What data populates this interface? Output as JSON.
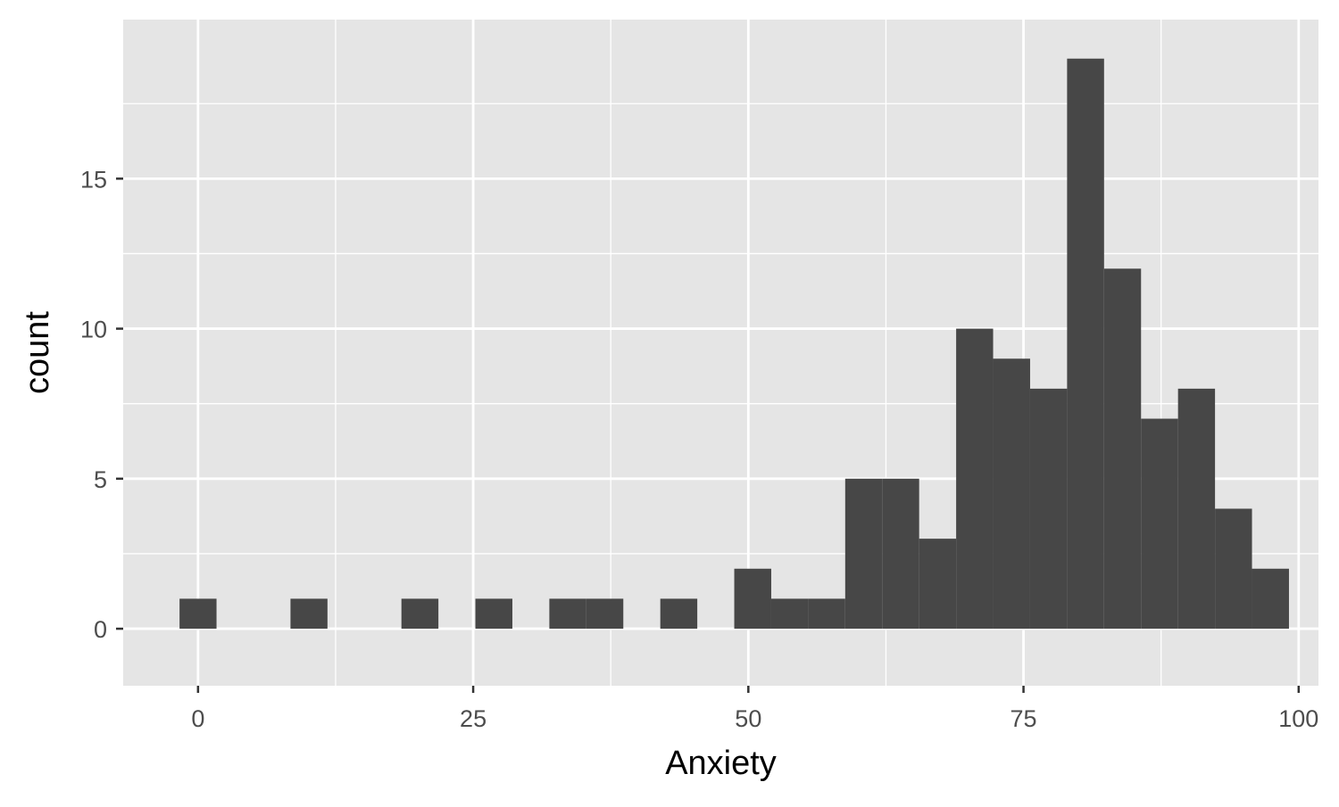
{
  "chart_data": {
    "type": "bar",
    "subtype": "histogram",
    "title": "",
    "xlabel": "Anxiety",
    "ylabel": "count",
    "xlim": [
      -6.8,
      101.8
    ],
    "ylim": [
      -1.9,
      20.3
    ],
    "bin_width": 3.36,
    "bins": [
      {
        "center": 0.0,
        "count": 1
      },
      {
        "center": 3.36,
        "count": 0
      },
      {
        "center": 6.72,
        "count": 0
      },
      {
        "center": 10.08,
        "count": 1
      },
      {
        "center": 13.44,
        "count": 0
      },
      {
        "center": 16.8,
        "count": 0
      },
      {
        "center": 20.16,
        "count": 1
      },
      {
        "center": 23.52,
        "count": 0
      },
      {
        "center": 26.88,
        "count": 1
      },
      {
        "center": 30.24,
        "count": 0
      },
      {
        "center": 33.6,
        "count": 1
      },
      {
        "center": 36.96,
        "count": 1
      },
      {
        "center": 40.32,
        "count": 0
      },
      {
        "center": 43.68,
        "count": 1
      },
      {
        "center": 47.04,
        "count": 0
      },
      {
        "center": 50.4,
        "count": 2
      },
      {
        "center": 53.76,
        "count": 1
      },
      {
        "center": 57.12,
        "count": 1
      },
      {
        "center": 60.48,
        "count": 5
      },
      {
        "center": 63.84,
        "count": 5
      },
      {
        "center": 67.2,
        "count": 3
      },
      {
        "center": 70.56,
        "count": 10
      },
      {
        "center": 73.92,
        "count": 9
      },
      {
        "center": 77.28,
        "count": 8
      },
      {
        "center": 80.64,
        "count": 19
      },
      {
        "center": 84.0,
        "count": 12
      },
      {
        "center": 87.36,
        "count": 7
      },
      {
        "center": 90.72,
        "count": 8
      },
      {
        "center": 94.08,
        "count": 4
      },
      {
        "center": 97.44,
        "count": 2
      }
    ],
    "x_ticks": [
      {
        "value": 0,
        "label": "0"
      },
      {
        "value": 25,
        "label": "25"
      },
      {
        "value": 50,
        "label": "50"
      },
      {
        "value": 75,
        "label": "75"
      },
      {
        "value": 100,
        "label": "100"
      }
    ],
    "y_ticks": [
      {
        "value": 0,
        "label": "0"
      },
      {
        "value": 5,
        "label": "5"
      },
      {
        "value": 10,
        "label": "10"
      },
      {
        "value": 15,
        "label": "15"
      }
    ],
    "x_minor": [
      12.5,
      37.5,
      62.5,
      87.5
    ],
    "y_minor": [
      2.5,
      7.5,
      12.5,
      17.5
    ],
    "grid": true,
    "legend": "none",
    "colors": {
      "bar": "#474747",
      "panel": "#e5e5e5",
      "grid": "#ffffff",
      "tick_text": "#4d4d4d",
      "tick_mark": "#333333",
      "axis_title": "#000000"
    }
  }
}
